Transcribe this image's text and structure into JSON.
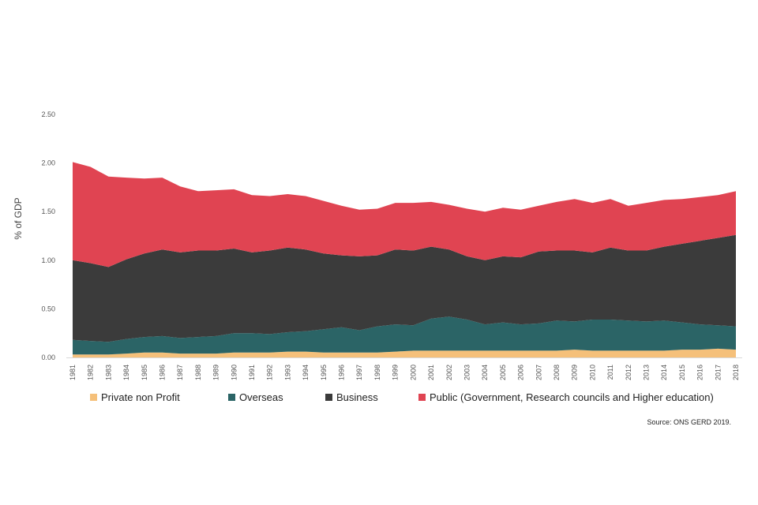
{
  "chart_data": {
    "type": "area",
    "stacked": true,
    "ylabel": "% of GDP",
    "ylim": [
      0,
      2.5
    ],
    "yticks": [
      "0.00",
      "0.50",
      "1.00",
      "1.50",
      "2.00",
      "2.50"
    ],
    "x": [
      "1981",
      "1982",
      "1983",
      "1984",
      "1985",
      "1986",
      "1987",
      "1988",
      "1989",
      "1990",
      "1991",
      "1992",
      "1993",
      "1994",
      "1995",
      "1996",
      "1997",
      "1998",
      "1999",
      "2000",
      "2001",
      "2002",
      "2003",
      "2004",
      "2005",
      "2006",
      "2007",
      "2008",
      "2009",
      "2010",
      "2011",
      "2012",
      "2013",
      "2014",
      "2015",
      "2016",
      "2017",
      "2018"
    ],
    "grid": false,
    "legend_position": "bottom",
    "series": [
      {
        "name": "Private non Profit",
        "color": "#f5c07a",
        "values": [
          0.03,
          0.03,
          0.03,
          0.04,
          0.05,
          0.05,
          0.04,
          0.04,
          0.04,
          0.05,
          0.05,
          0.05,
          0.06,
          0.06,
          0.05,
          0.05,
          0.05,
          0.05,
          0.06,
          0.07,
          0.07,
          0.07,
          0.07,
          0.07,
          0.07,
          0.07,
          0.07,
          0.07,
          0.08,
          0.07,
          0.07,
          0.07,
          0.07,
          0.07,
          0.08,
          0.08,
          0.09,
          0.08
        ]
      },
      {
        "name": "Overseas",
        "color": "#2b6466",
        "values": [
          0.15,
          0.14,
          0.13,
          0.15,
          0.16,
          0.17,
          0.16,
          0.17,
          0.18,
          0.2,
          0.2,
          0.19,
          0.2,
          0.21,
          0.24,
          0.26,
          0.23,
          0.27,
          0.28,
          0.26,
          0.33,
          0.35,
          0.32,
          0.27,
          0.29,
          0.27,
          0.28,
          0.31,
          0.29,
          0.32,
          0.32,
          0.31,
          0.3,
          0.31,
          0.28,
          0.26,
          0.24,
          0.24
        ]
      },
      {
        "name": "Business",
        "color": "#3b3b3b",
        "values": [
          0.82,
          0.8,
          0.77,
          0.82,
          0.86,
          0.89,
          0.88,
          0.89,
          0.88,
          0.87,
          0.83,
          0.86,
          0.87,
          0.84,
          0.78,
          0.74,
          0.76,
          0.73,
          0.77,
          0.77,
          0.74,
          0.69,
          0.65,
          0.66,
          0.68,
          0.69,
          0.74,
          0.72,
          0.73,
          0.69,
          0.74,
          0.72,
          0.73,
          0.76,
          0.81,
          0.86,
          0.9,
          0.94
        ]
      },
      {
        "name": "Public (Government, Research councils and Higher education)",
        "color": "#e04452",
        "values": [
          1.01,
          0.99,
          0.93,
          0.84,
          0.77,
          0.74,
          0.68,
          0.61,
          0.62,
          0.61,
          0.59,
          0.56,
          0.55,
          0.55,
          0.54,
          0.51,
          0.48,
          0.48,
          0.48,
          0.49,
          0.46,
          0.46,
          0.49,
          0.5,
          0.5,
          0.49,
          0.47,
          0.5,
          0.53,
          0.51,
          0.5,
          0.46,
          0.49,
          0.48,
          0.46,
          0.45,
          0.44,
          0.45
        ]
      }
    ]
  },
  "source_note": "Source: ONS GERD 2019."
}
